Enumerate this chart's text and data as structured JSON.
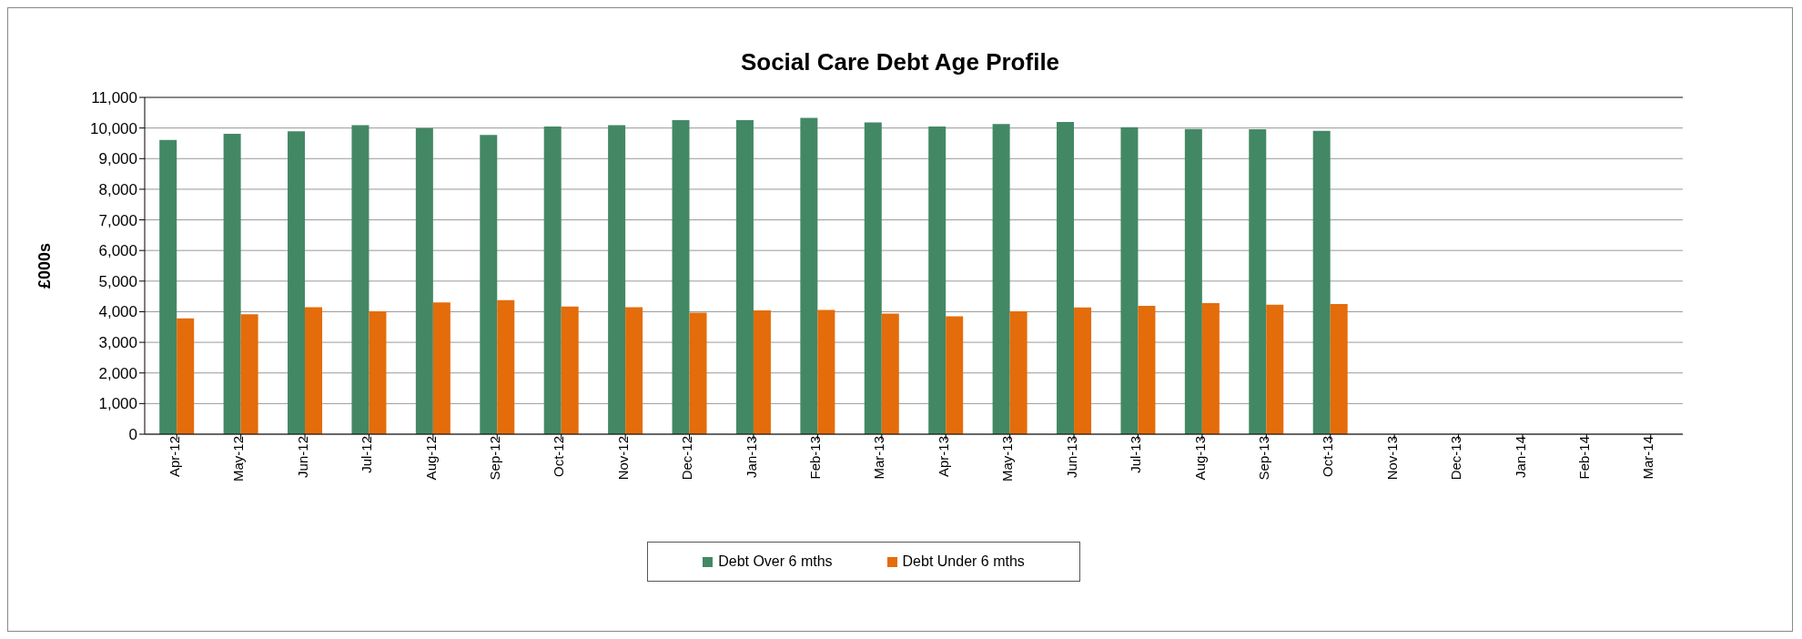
{
  "chart_data": {
    "type": "bar",
    "title": "Social Care Debt Age Profile",
    "ylabel": "£000s",
    "categories": [
      "Apr-12",
      "May-12",
      "Jun-12",
      "Jul-12",
      "Aug-12",
      "Sep-12",
      "Oct-12",
      "Nov-12",
      "Dec-12",
      "Jan-13",
      "Feb-13",
      "Mar-13",
      "Apr-13",
      "May-13",
      "Jun-13",
      "Jul-13",
      "Aug-13",
      "Sep-13",
      "Oct-13",
      "Nov-13",
      "Dec-13",
      "Jan-14",
      "Feb-14",
      "Mar-14"
    ],
    "series": [
      {
        "name": "Debt Over 6 mths",
        "color": "#438864",
        "values": [
          9610,
          9810,
          9890,
          10090,
          10000,
          9770,
          10050,
          10090,
          10260,
          10260,
          10330,
          10180,
          10050,
          10130,
          10200,
          10030,
          9970,
          9960,
          9910,
          null,
          null,
          null,
          null,
          null
        ]
      },
      {
        "name": "Debt Under 6 mths",
        "color": "#e46c0a",
        "values": [
          3780,
          3920,
          4150,
          4010,
          4300,
          4380,
          4170,
          4150,
          3970,
          4040,
          4060,
          3940,
          3850,
          4010,
          4140,
          4190,
          4280,
          4230,
          4250,
          null,
          null,
          null,
          null,
          null
        ]
      }
    ],
    "ylim": [
      0,
      11000
    ],
    "yticks": [
      0,
      {
        "value": 1000,
        "label": "1,000"
      },
      {
        "value": 2000,
        "label": "2,000"
      },
      {
        "value": 3000,
        "label": "3,000"
      },
      {
        "value": 4000,
        "label": "4,000"
      },
      {
        "value": 5000,
        "label": "5,000"
      },
      {
        "value": 6000,
        "label": "6,000"
      },
      {
        "value": 7000,
        "label": "7,000"
      },
      {
        "value": 8000,
        "label": "8,000"
      },
      {
        "value": 9000,
        "label": "9,000"
      },
      {
        "value": 10000,
        "label": "10,000"
      },
      {
        "value": 11000,
        "label": "11,000"
      }
    ],
    "grid": "y",
    "legend": "bottom"
  }
}
